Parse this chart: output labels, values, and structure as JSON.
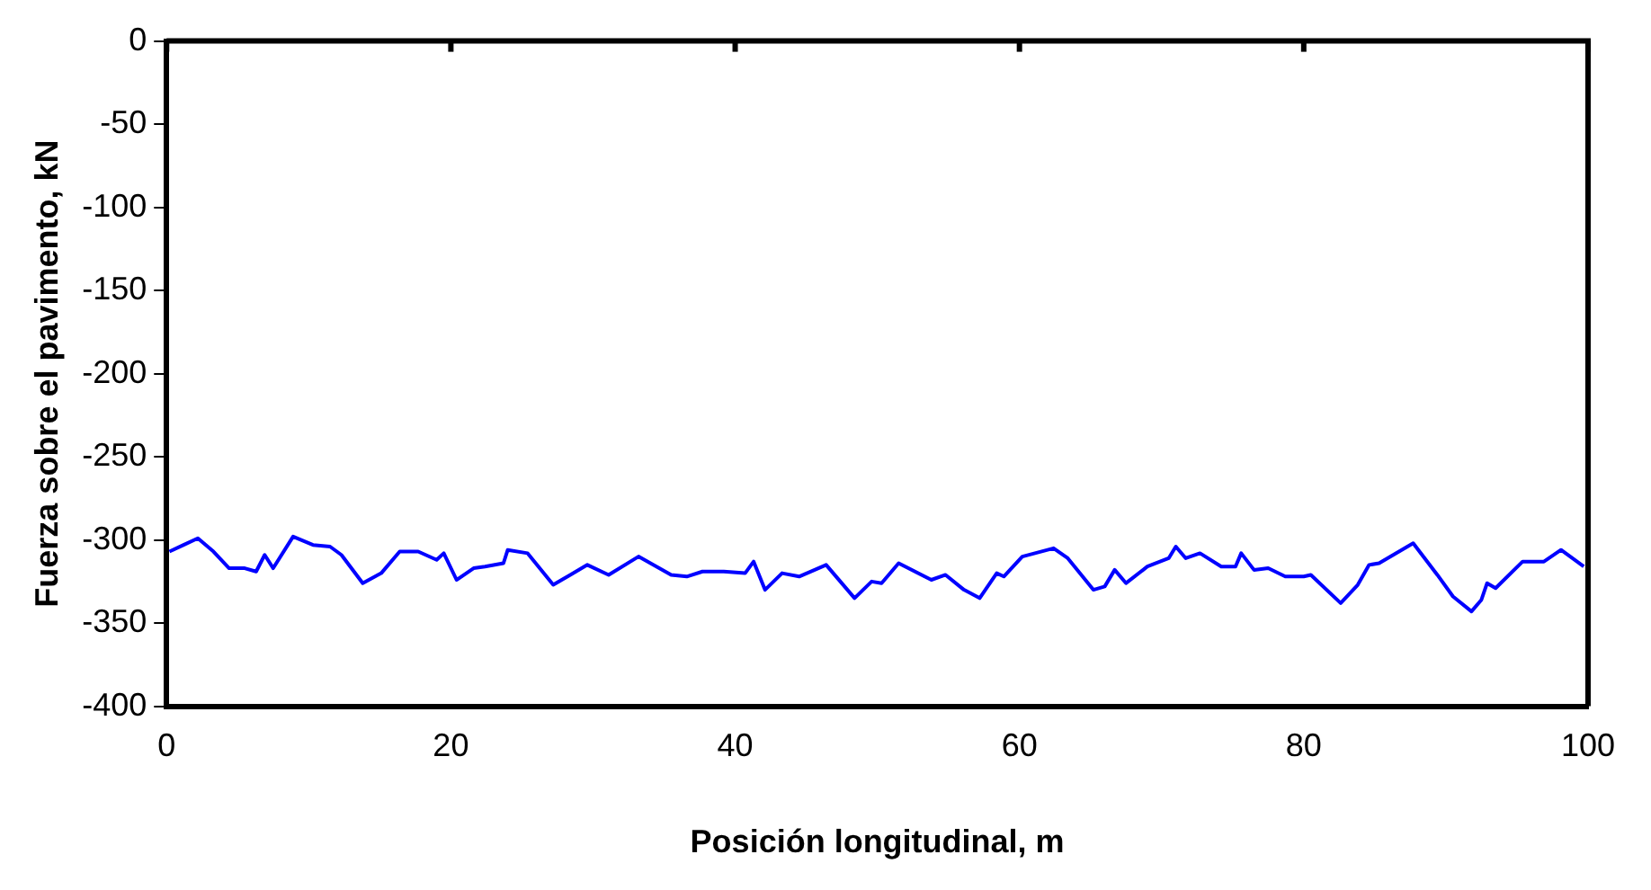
{
  "chart_data": {
    "type": "line",
    "xlabel": "Posición longitudinal, m",
    "ylabel": "Fuerza sobre el pavimento, kN",
    "xlim": [
      0,
      100
    ],
    "xticks": [
      0,
      20,
      40,
      60,
      80,
      100
    ],
    "ylim": [
      -400,
      0
    ],
    "yticks": [
      0,
      -50,
      -100,
      -150,
      -200,
      -250,
      -300,
      -350,
      -400
    ],
    "grid": false,
    "legend": false,
    "marker": "none",
    "line_style": "solid",
    "series": [
      {
        "color": "#0000ff",
        "x": [
          0.2,
          1.2,
          2.2,
          3.3,
          4.4,
          5.5,
          6.3,
          6.9,
          7.5,
          8.9,
          10.3,
          11.5,
          12.3,
          13.8,
          15.1,
          16.4,
          17.7,
          19,
          19.5,
          20.4,
          21.6,
          22.4,
          23.7,
          24,
          25.4,
          27.2,
          28.4,
          29.6,
          31.1,
          33.2,
          35.5,
          36.6,
          37.7,
          39.2,
          40.7,
          41.3,
          42.1,
          43.3,
          44.5,
          46.4,
          48.4,
          49.6,
          50.3,
          51.5,
          53.8,
          54.8,
          56.1,
          57.2,
          58.4,
          58.9,
          60.2,
          62.4,
          63.4,
          65.2,
          66,
          66.7,
          67.5,
          69,
          70.5,
          71,
          71.7,
          72.7,
          74.2,
          75.2,
          75.6,
          76.5,
          77.5,
          78.7,
          80,
          80.5,
          82.6,
          83.8,
          84.6,
          85.3,
          87.7,
          89.4,
          90.5,
          91.8,
          92.5,
          92.9,
          93.5,
          95.4,
          96.9,
          98.1,
          99.7
        ],
        "values": [
          -307,
          -303,
          -299,
          -307,
          -317,
          -317,
          -319,
          -309,
          -317,
          -298,
          -303,
          -304,
          -309,
          -326,
          -320,
          -307,
          -307,
          -312,
          -308,
          -324,
          -317,
          -316,
          -314,
          -306,
          -308,
          -327,
          -321,
          -315,
          -321,
          -310,
          -321,
          -322,
          -319,
          -319,
          -320,
          -313,
          -330,
          -320,
          -322,
          -315,
          -335,
          -325,
          -326,
          -314,
          -324,
          -321,
          -330,
          -335,
          -320,
          -322,
          -310,
          -305,
          -311,
          -330,
          -328,
          -318,
          -326,
          -316,
          -311,
          -304,
          -311,
          -308,
          -316,
          -316,
          -308,
          -318,
          -317,
          -322,
          -322,
          -321,
          -338,
          -327,
          -315,
          -314,
          -302,
          -321,
          -334,
          -343,
          -336,
          -326,
          -329,
          -313,
          -313,
          -306,
          -316
        ]
      }
    ]
  }
}
